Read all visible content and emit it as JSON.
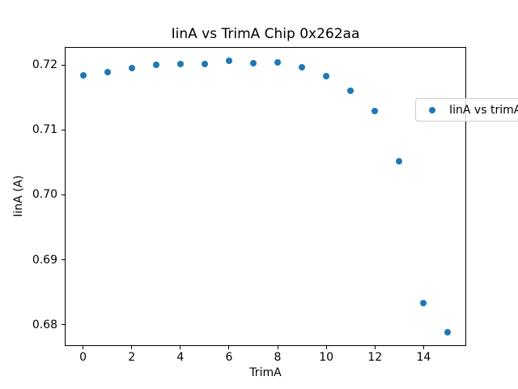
{
  "window": {
    "background": "#ffffff"
  },
  "chart_data": {
    "type": "scatter",
    "title": "IinA vs TrimA Chip 0x262aa",
    "xlabel": "TrimA",
    "ylabel": "IinA (A)",
    "legend": [
      "IinA vs trimA"
    ],
    "legend_position": "upper right",
    "marker_color": "#1f77b4",
    "marker_style": "circle",
    "grid": false,
    "x": [
      0,
      1,
      2,
      3,
      4,
      5,
      6,
      7,
      8,
      9,
      10,
      11,
      12,
      13,
      14,
      15
    ],
    "y": [
      0.7184,
      0.7189,
      0.7195,
      0.72,
      0.7202,
      0.7202,
      0.7207,
      0.7203,
      0.7204,
      0.7197,
      0.7183,
      0.716,
      0.7129,
      0.7052,
      0.6833,
      0.6788
    ],
    "xlim": [
      -0.75,
      15.75
    ],
    "ylim": [
      0.6767,
      0.7228
    ],
    "x_ticks": [
      {
        "label": "0",
        "value": 0
      },
      {
        "label": "2",
        "value": 2
      },
      {
        "label": "4",
        "value": 4
      },
      {
        "label": "6",
        "value": 6
      },
      {
        "label": "8",
        "value": 8
      },
      {
        "label": "10",
        "value": 10
      },
      {
        "label": "12",
        "value": 12
      },
      {
        "label": "14",
        "value": 14
      }
    ],
    "y_ticks": [
      {
        "label": "0.68",
        "value": 0.68
      },
      {
        "label": "0.69",
        "value": 0.69
      },
      {
        "label": "0.70",
        "value": 0.7
      },
      {
        "label": "0.71",
        "value": 0.71
      },
      {
        "label": "0.72",
        "value": 0.72
      }
    ]
  }
}
